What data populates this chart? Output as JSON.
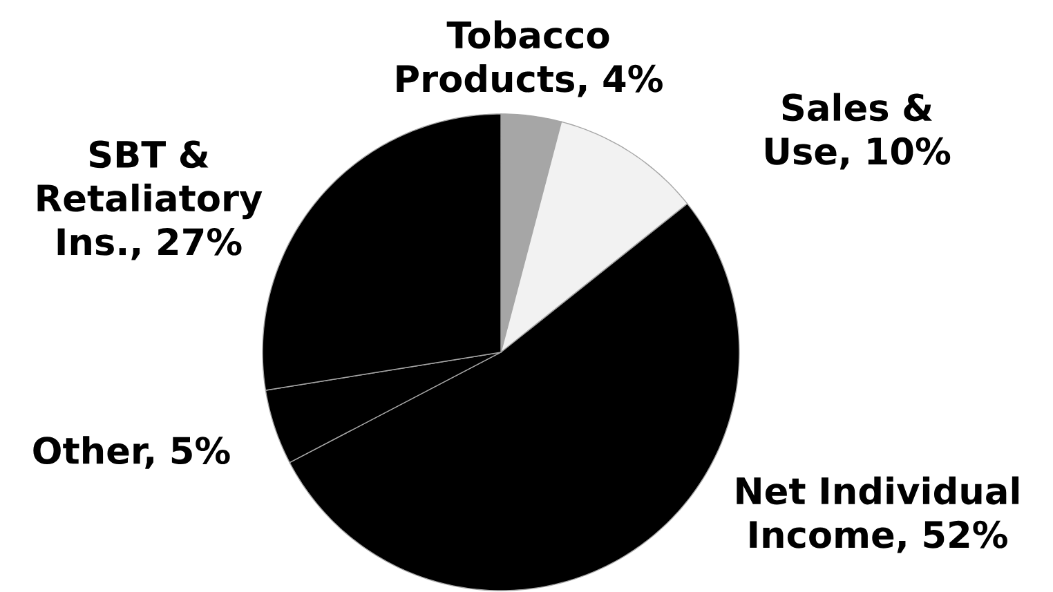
{
  "chart_data": {
    "type": "pie",
    "categories": [
      "Tobacco Products, 4%",
      "Sales & Use, 10%",
      "Net Individual Income, 52%",
      "Other, 5%",
      "SBT & Retaliatory Ins., 27%"
    ],
    "values": [
      4,
      10,
      52,
      5,
      27
    ],
    "colors": [
      "#a6a6a6",
      "#f2f2f2",
      "#000000",
      "#000000",
      "#000000"
    ]
  }
}
